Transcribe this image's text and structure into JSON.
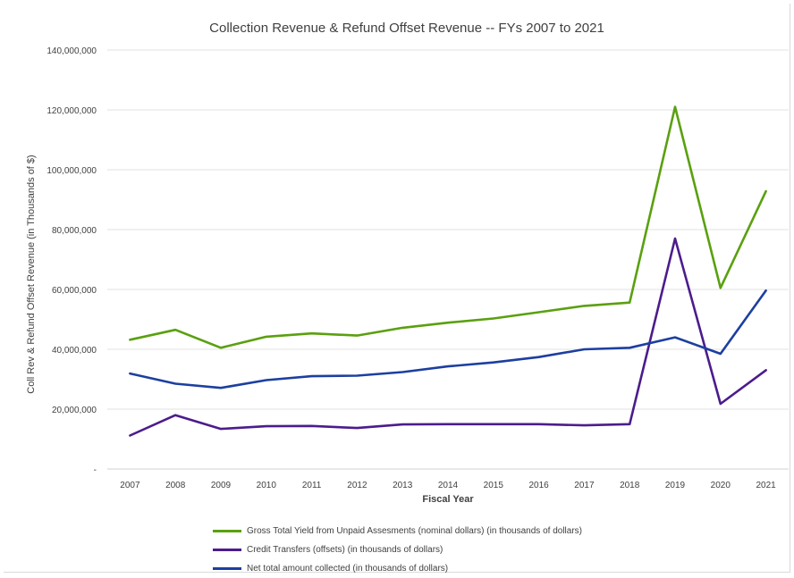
{
  "chart_data": {
    "type": "line",
    "title": "Collection Revenue & Refund Offset Revenue -- FYs 2007 to 2021",
    "xlabel": "Fiscal Year",
    "ylabel": "Coll Rev & Refund Offset Revenue (in Thousands of $)",
    "ylim": [
      0,
      140000000
    ],
    "yticks": [
      0,
      20000000,
      40000000,
      60000000,
      80000000,
      100000000,
      120000000,
      140000000
    ],
    "ytick_labels": [
      "-",
      "20,000,000",
      "40,000,000",
      "60,000,000",
      "80,000,000",
      "100,000,000",
      "120,000,000",
      "140,000,000"
    ],
    "grid": "horizontal",
    "legend_position": "bottom",
    "categories": [
      "2007",
      "2008",
      "2009",
      "2010",
      "2011",
      "2012",
      "2013",
      "2014",
      "2015",
      "2016",
      "2017",
      "2018",
      "2019",
      "2020",
      "2021"
    ],
    "series": [
      {
        "name": "Gross Total Yield from Unpaid Assesments (nominal dollars) (in thousands of dollars)",
        "color": "#5aa00f",
        "values": [
          43200000,
          46500000,
          40500000,
          44200000,
          45300000,
          44600000,
          47200000,
          48900000,
          50300000,
          52400000,
          54500000,
          55600000,
          121000000,
          60500000,
          92800000
        ]
      },
      {
        "name": "Credit Transfers (offsets) (in thousands of dollars)",
        "color": "#4b1c8c",
        "values": [
          11200000,
          18000000,
          13400000,
          14300000,
          14400000,
          13700000,
          14900000,
          15000000,
          15000000,
          15000000,
          14600000,
          15000000,
          77000000,
          21800000,
          33000000
        ]
      },
      {
        "name": "Net total amount collected (in thousands of dollars)",
        "color": "#1c3fa0",
        "values": [
          31900000,
          28500000,
          27100000,
          29700000,
          31000000,
          31200000,
          32400000,
          34300000,
          35600000,
          37400000,
          40000000,
          40500000,
          44000000,
          38500000,
          59600000
        ]
      }
    ]
  }
}
